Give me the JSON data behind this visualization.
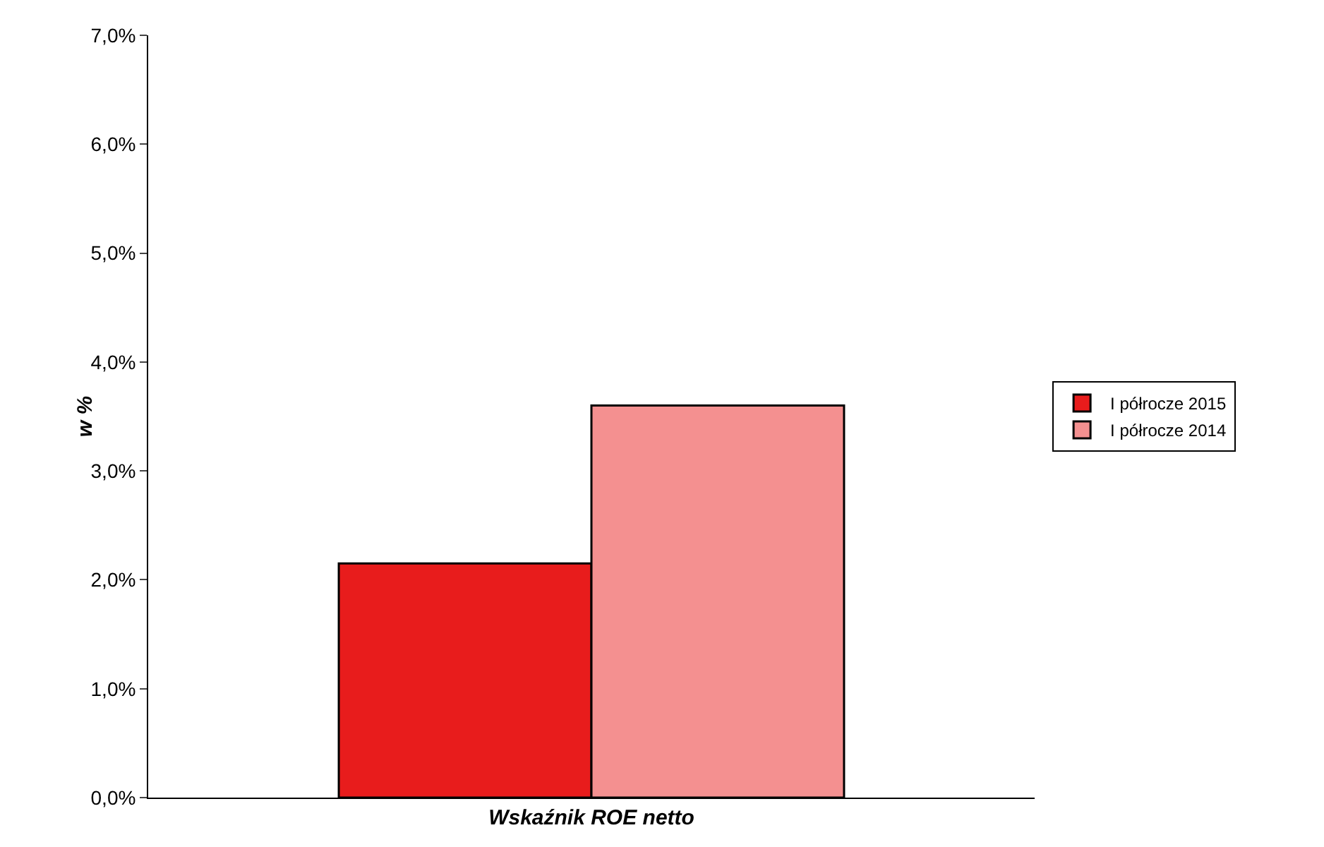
{
  "chart_data": {
    "type": "bar",
    "ylabel": "w %",
    "categories": [
      "Wskaźnik ROE netto"
    ],
    "series": [
      {
        "name": "I półrocze 2015",
        "color": "#e81c1c",
        "values": [
          2.15
        ]
      },
      {
        "name": "I półrocze 2014",
        "color": "#f49090",
        "values": [
          3.6
        ]
      }
    ],
    "ylim": [
      0,
      7
    ],
    "yticks": [
      {
        "value": 0,
        "label": "0,0%"
      },
      {
        "value": 1,
        "label": "1,0%"
      },
      {
        "value": 2,
        "label": "2,0%"
      },
      {
        "value": 3,
        "label": "3,0%"
      },
      {
        "value": 4,
        "label": "4,0%"
      },
      {
        "value": 5,
        "label": "5,0%"
      },
      {
        "value": 6,
        "label": "6,0%"
      },
      {
        "value": 7,
        "label": "7,0%"
      }
    ],
    "grid": false,
    "legend": "right"
  }
}
